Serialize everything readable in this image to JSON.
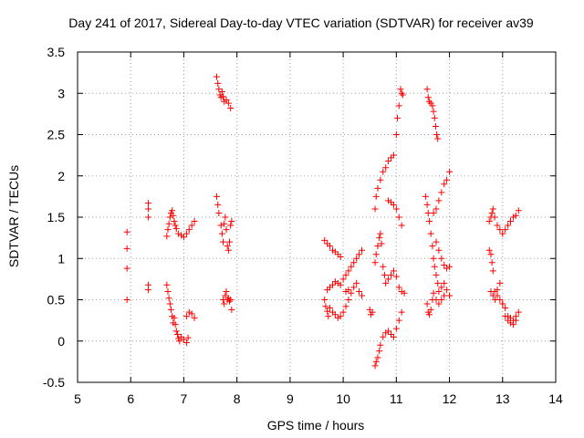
{
  "chart_data": {
    "type": "scatter",
    "title": "Day 241 of 2017, Sidereal Day-to-day VTEC variation (SDTVAR) for receiver av39",
    "xlabel": "GPS time / hours",
    "ylabel": "SDTVAR / TECUs",
    "xlim": [
      5,
      14
    ],
    "ylim": [
      -0.5,
      3.5
    ],
    "xticks": [
      "5",
      "6",
      "7",
      "8",
      "9",
      "10",
      "11",
      "12",
      "13",
      "14"
    ],
    "yticks": [
      "-0.5",
      "0",
      "0.5",
      "1",
      "1.5",
      "2",
      "2.5",
      "3",
      "3.5"
    ],
    "grid": true,
    "marker": "+",
    "color": "#ff0000",
    "series": [
      {
        "name": "SDTVAR",
        "points": [
          [
            5.93,
            1.32
          ],
          [
            5.93,
            1.12
          ],
          [
            5.93,
            0.88
          ],
          [
            5.93,
            0.5
          ],
          [
            6.33,
            1.67
          ],
          [
            6.33,
            1.6
          ],
          [
            6.33,
            1.5
          ],
          [
            6.33,
            0.68
          ],
          [
            6.33,
            0.62
          ],
          [
            6.68,
            1.27
          ],
          [
            6.7,
            1.35
          ],
          [
            6.72,
            1.42
          ],
          [
            6.74,
            1.5
          ],
          [
            6.76,
            1.55
          ],
          [
            6.78,
            1.58
          ],
          [
            6.8,
            1.52
          ],
          [
            6.82,
            1.45
          ],
          [
            6.84,
            1.4
          ],
          [
            6.86,
            1.36
          ],
          [
            6.9,
            1.3
          ],
          [
            6.95,
            1.28
          ],
          [
            7.0,
            1.26
          ],
          [
            7.05,
            1.3
          ],
          [
            7.1,
            1.35
          ],
          [
            7.15,
            1.4
          ],
          [
            7.2,
            1.45
          ],
          [
            6.68,
            0.68
          ],
          [
            6.7,
            0.6
          ],
          [
            6.72,
            0.52
          ],
          [
            6.74,
            0.45
          ],
          [
            6.76,
            0.38
          ],
          [
            6.78,
            0.3
          ],
          [
            6.8,
            0.22
          ],
          [
            6.82,
            0.28
          ],
          [
            6.84,
            0.2
          ],
          [
            6.86,
            0.12
          ],
          [
            6.88,
            0.08
          ],
          [
            6.9,
            0.03
          ],
          [
            6.92,
            0.0
          ],
          [
            6.95,
            0.05
          ],
          [
            7.0,
            0.02
          ],
          [
            7.05,
            -0.02
          ],
          [
            7.08,
            0.04
          ],
          [
            7.05,
            0.3
          ],
          [
            7.1,
            0.35
          ],
          [
            7.15,
            0.33
          ],
          [
            7.2,
            0.28
          ],
          [
            7.62,
            3.2
          ],
          [
            7.64,
            3.12
          ],
          [
            7.66,
            3.05
          ],
          [
            7.68,
            2.98
          ],
          [
            7.7,
            2.95
          ],
          [
            7.72,
            3.02
          ],
          [
            7.74,
            2.96
          ],
          [
            7.76,
            2.9
          ],
          [
            7.8,
            2.92
          ],
          [
            7.84,
            2.88
          ],
          [
            7.88,
            2.82
          ],
          [
            7.62,
            1.75
          ],
          [
            7.64,
            1.65
          ],
          [
            7.66,
            1.55
          ],
          [
            7.7,
            1.4
          ],
          [
            7.72,
            1.3
          ],
          [
            7.74,
            1.2
          ],
          [
            7.76,
            1.42
          ],
          [
            7.78,
            1.5
          ],
          [
            7.8,
            1.35
          ],
          [
            7.82,
            1.15
          ],
          [
            7.84,
            1.1
          ],
          [
            7.86,
            1.2
          ],
          [
            7.88,
            1.4
          ],
          [
            7.9,
            1.45
          ],
          [
            7.74,
            0.5
          ],
          [
            7.76,
            0.45
          ],
          [
            7.78,
            0.55
          ],
          [
            7.8,
            0.6
          ],
          [
            7.82,
            0.5
          ],
          [
            7.84,
            0.52
          ],
          [
            7.86,
            0.48
          ],
          [
            7.88,
            0.5
          ],
          [
            7.9,
            0.38
          ],
          [
            9.65,
            1.22
          ],
          [
            9.7,
            1.18
          ],
          [
            9.75,
            1.15
          ],
          [
            9.8,
            1.1
          ],
          [
            9.85,
            1.08
          ],
          [
            9.9,
            1.05
          ],
          [
            9.95,
            1.02
          ],
          [
            9.65,
            0.5
          ],
          [
            9.67,
            0.42
          ],
          [
            9.7,
            0.36
          ],
          [
            9.72,
            0.3
          ],
          [
            9.75,
            0.4
          ],
          [
            9.8,
            0.35
          ],
          [
            9.85,
            0.32
          ],
          [
            9.9,
            0.28
          ],
          [
            9.95,
            0.3
          ],
          [
            10.0,
            0.35
          ],
          [
            10.05,
            0.42
          ],
          [
            10.1,
            0.5
          ],
          [
            9.7,
            0.62
          ],
          [
            9.75,
            0.65
          ],
          [
            9.8,
            0.68
          ],
          [
            9.85,
            0.72
          ],
          [
            9.9,
            0.7
          ],
          [
            9.95,
            0.68
          ],
          [
            10.0,
            0.75
          ],
          [
            10.05,
            0.8
          ],
          [
            10.1,
            0.85
          ],
          [
            10.15,
            0.9
          ],
          [
            10.2,
            0.95
          ],
          [
            10.25,
            1.0
          ],
          [
            10.3,
            1.05
          ],
          [
            10.35,
            1.1
          ],
          [
            10.05,
            0.6
          ],
          [
            10.1,
            0.62
          ],
          [
            10.15,
            0.58
          ],
          [
            10.2,
            0.65
          ],
          [
            10.25,
            0.7
          ],
          [
            10.3,
            0.6
          ],
          [
            10.35,
            0.55
          ],
          [
            10.5,
            0.38
          ],
          [
            10.52,
            0.32
          ],
          [
            10.55,
            0.35
          ],
          [
            10.6,
            1.6
          ],
          [
            10.62,
            1.75
          ],
          [
            10.65,
            1.85
          ],
          [
            10.7,
            1.95
          ],
          [
            10.75,
            2.05
          ],
          [
            10.8,
            2.1
          ],
          [
            10.85,
            2.18
          ],
          [
            10.9,
            2.22
          ],
          [
            10.95,
            2.25
          ],
          [
            11.0,
            2.5
          ],
          [
            11.02,
            2.7
          ],
          [
            11.05,
            2.85
          ],
          [
            11.08,
            3.05
          ],
          [
            11.1,
            3.0
          ],
          [
            11.12,
            2.98
          ],
          [
            10.6,
            -0.3
          ],
          [
            10.62,
            -0.25
          ],
          [
            10.65,
            -0.2
          ],
          [
            10.68,
            -0.12
          ],
          [
            10.7,
            -0.05
          ],
          [
            10.75,
            0.05
          ],
          [
            10.8,
            0.1
          ],
          [
            10.85,
            0.12
          ],
          [
            10.9,
            0.08
          ],
          [
            10.95,
            0.05
          ],
          [
            11.0,
            0.15
          ],
          [
            11.05,
            0.25
          ],
          [
            11.1,
            0.35
          ],
          [
            10.6,
            0.95
          ],
          [
            10.62,
            1.05
          ],
          [
            10.65,
            1.15
          ],
          [
            10.68,
            1.25
          ],
          [
            10.7,
            1.3
          ],
          [
            10.72,
            1.18
          ],
          [
            10.75,
            0.9
          ],
          [
            10.78,
            0.8
          ],
          [
            10.8,
            0.7
          ],
          [
            10.85,
            0.75
          ],
          [
            10.9,
            0.8
          ],
          [
            10.95,
            0.85
          ],
          [
            11.0,
            0.78
          ],
          [
            11.05,
            0.65
          ],
          [
            11.1,
            0.6
          ],
          [
            11.15,
            0.58
          ],
          [
            10.85,
            1.7
          ],
          [
            10.9,
            1.68
          ],
          [
            10.95,
            1.65
          ],
          [
            11.0,
            1.6
          ],
          [
            11.05,
            1.5
          ],
          [
            11.1,
            1.4
          ],
          [
            11.58,
            3.05
          ],
          [
            11.6,
            2.95
          ],
          [
            11.62,
            2.9
          ],
          [
            11.65,
            2.88
          ],
          [
            11.68,
            2.85
          ],
          [
            11.7,
            2.78
          ],
          [
            11.72,
            2.7
          ],
          [
            11.74,
            2.6
          ],
          [
            11.76,
            2.5
          ],
          [
            11.78,
            2.45
          ],
          [
            11.55,
            1.75
          ],
          [
            11.58,
            1.65
          ],
          [
            11.6,
            1.55
          ],
          [
            11.62,
            1.45
          ],
          [
            11.65,
            1.3
          ],
          [
            11.68,
            1.15
          ],
          [
            11.7,
            1.0
          ],
          [
            11.72,
            0.9
          ],
          [
            11.75,
            0.8
          ],
          [
            11.78,
            0.7
          ],
          [
            11.8,
            0.6
          ],
          [
            11.85,
            0.65
          ],
          [
            11.9,
            0.7
          ],
          [
            11.95,
            0.62
          ],
          [
            12.0,
            0.55
          ],
          [
            11.58,
            0.45
          ],
          [
            11.6,
            0.35
          ],
          [
            11.62,
            0.32
          ],
          [
            11.65,
            0.38
          ],
          [
            11.68,
            0.5
          ],
          [
            11.7,
            0.58
          ],
          [
            11.75,
            0.5
          ],
          [
            11.8,
            0.45
          ],
          [
            11.85,
            0.5
          ],
          [
            11.9,
            0.55
          ],
          [
            11.7,
            1.55
          ],
          [
            11.75,
            1.6
          ],
          [
            11.8,
            1.7
          ],
          [
            11.85,
            1.8
          ],
          [
            11.9,
            1.9
          ],
          [
            11.95,
            1.95
          ],
          [
            12.0,
            2.05
          ],
          [
            11.75,
            1.2
          ],
          [
            11.8,
            1.1
          ],
          [
            11.85,
            1.0
          ],
          [
            11.9,
            0.92
          ],
          [
            11.95,
            0.88
          ],
          [
            12.0,
            0.9
          ],
          [
            12.75,
            1.1
          ],
          [
            12.78,
            1.05
          ],
          [
            12.8,
            0.95
          ],
          [
            12.82,
            0.85
          ],
          [
            12.85,
            0.6
          ],
          [
            12.9,
            0.55
          ],
          [
            12.95,
            0.5
          ],
          [
            13.0,
            0.45
          ],
          [
            13.05,
            0.4
          ],
          [
            13.1,
            0.3
          ],
          [
            13.15,
            0.28
          ],
          [
            13.2,
            0.25
          ],
          [
            13.25,
            0.3
          ],
          [
            13.3,
            0.35
          ],
          [
            12.75,
            1.45
          ],
          [
            12.78,
            1.5
          ],
          [
            12.8,
            1.55
          ],
          [
            12.82,
            1.6
          ],
          [
            12.85,
            1.5
          ],
          [
            12.9,
            1.4
          ],
          [
            12.95,
            1.35
          ],
          [
            13.0,
            1.3
          ],
          [
            13.05,
            1.35
          ],
          [
            13.1,
            1.4
          ],
          [
            13.15,
            1.45
          ],
          [
            13.2,
            1.5
          ],
          [
            13.25,
            1.52
          ],
          [
            13.3,
            1.58
          ],
          [
            12.78,
            0.6
          ],
          [
            12.82,
            0.55
          ],
          [
            12.86,
            0.5
          ],
          [
            12.9,
            0.62
          ],
          [
            12.95,
            0.7
          ],
          [
            13.0,
            0.45
          ],
          [
            13.05,
            0.3
          ],
          [
            13.1,
            0.25
          ],
          [
            13.15,
            0.22
          ],
          [
            13.2,
            0.2
          ],
          [
            13.25,
            0.25
          ]
        ]
      }
    ]
  }
}
